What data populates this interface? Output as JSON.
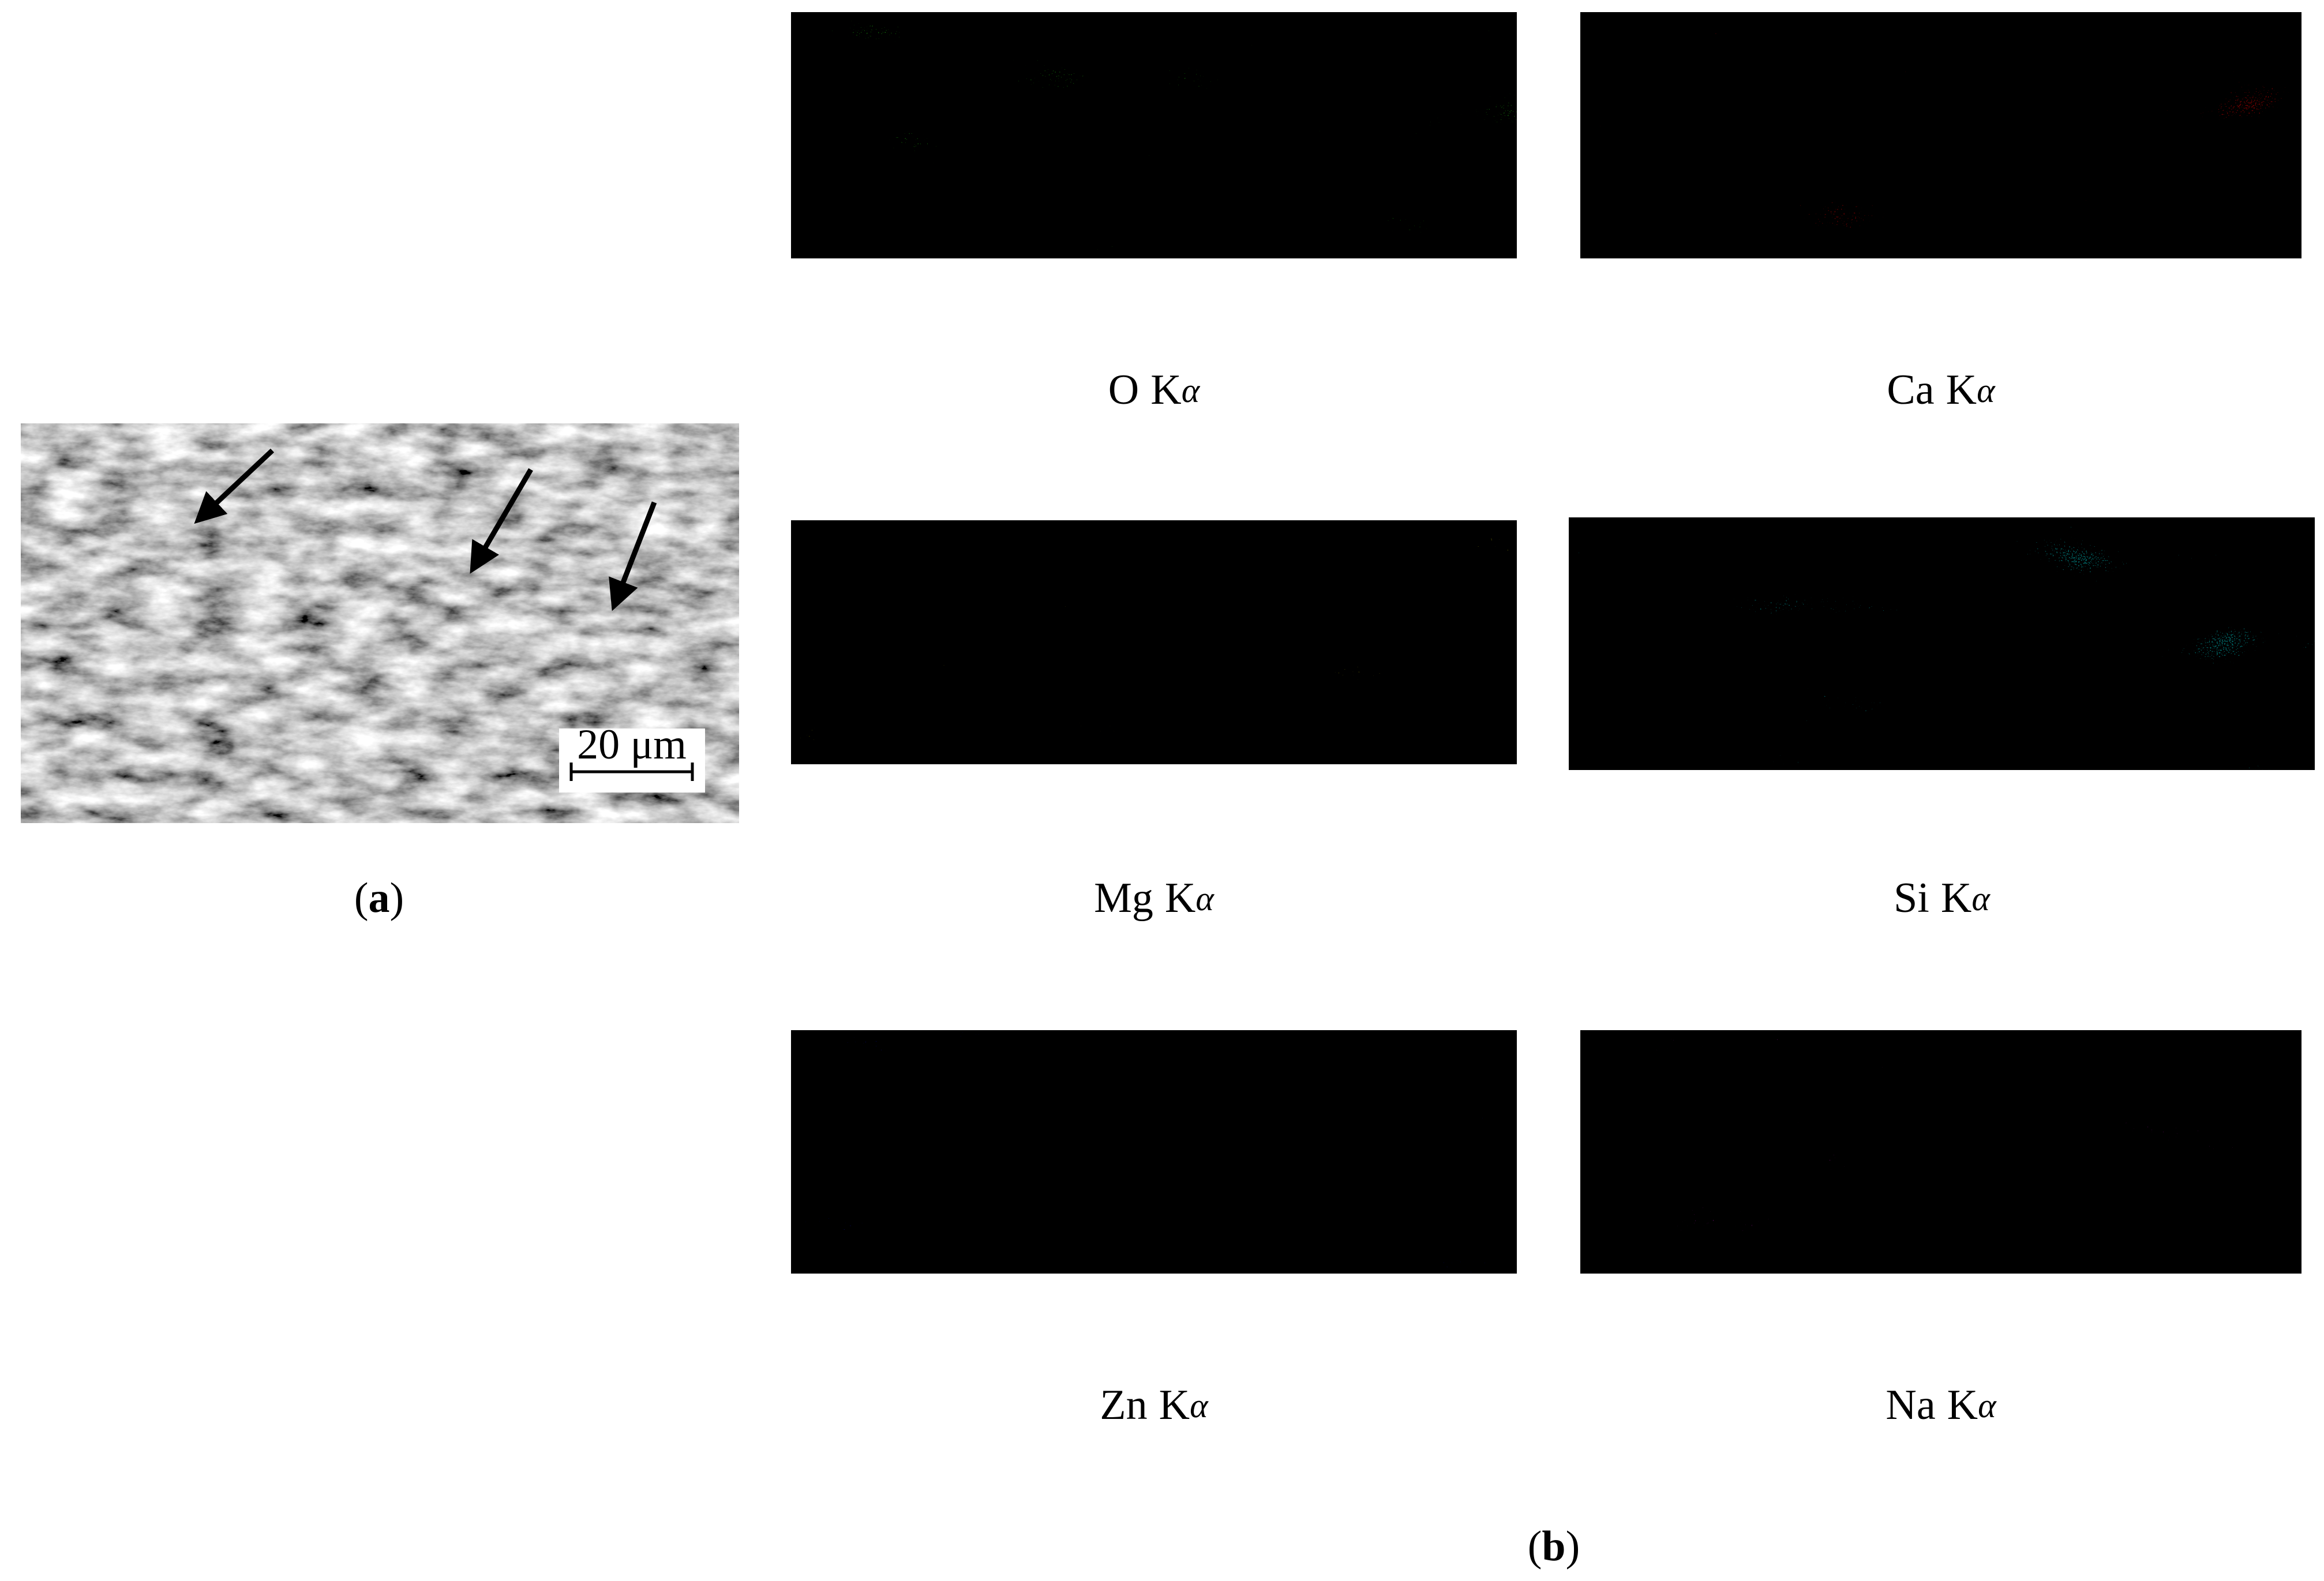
{
  "panel_a": {
    "scale_bar": "20 μm",
    "caption": {
      "prefix": "(",
      "label": "a",
      "suffix": ")"
    }
  },
  "panel_b": {
    "maps": [
      {
        "element": "O",
        "line": "K",
        "greek": "α"
      },
      {
        "element": "Ca",
        "line": "K",
        "greek": "α"
      },
      {
        "element": "Mg",
        "line": "K",
        "greek": "α"
      },
      {
        "element": "Si",
        "line": "K",
        "greek": "α"
      },
      {
        "element": "Zn",
        "line": "K",
        "greek": "α"
      },
      {
        "element": "Na",
        "line": "K",
        "greek": "α"
      }
    ],
    "caption": {
      "prefix": "(",
      "label": "b",
      "suffix": ")"
    }
  }
}
